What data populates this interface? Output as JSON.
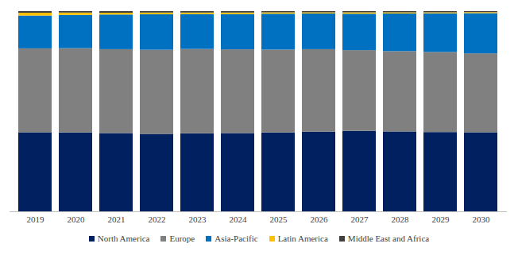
{
  "chart_data": {
    "type": "bar",
    "stacked": true,
    "tick_labels": "x",
    "legend": "bottom",
    "categories": [
      "2019",
      "2020",
      "2021",
      "2022",
      "2023",
      "2024",
      "2025",
      "2026",
      "2027",
      "2028",
      "2029",
      "2030"
    ],
    "ylim": [
      0,
      100
    ],
    "series": [
      {
        "name": "North America",
        "color": "#002060",
        "values": [
          39.5,
          39.4,
          39.1,
          38.7,
          39.0,
          39.1,
          39.4,
          39.8,
          40.2,
          39.9,
          39.6,
          39.5
        ]
      },
      {
        "name": "Europe",
        "color": "#808080",
        "values": [
          41.9,
          42.1,
          41.9,
          42.0,
          42.1,
          41.8,
          41.4,
          41.2,
          40.3,
          40.1,
          40.0,
          39.4
        ]
      },
      {
        "name": "Asia-Pacific",
        "color": "#0070c0",
        "values": [
          16.4,
          16.6,
          17.3,
          17.7,
          17.4,
          17.6,
          17.9,
          17.8,
          18.2,
          18.8,
          19.3,
          20.1
        ]
      },
      {
        "name": "Latin America",
        "color": "#ffc000",
        "values": [
          1.4,
          1.2,
          0.9,
          0.9,
          0.8,
          0.8,
          0.7,
          0.6,
          0.7,
          0.6,
          0.5,
          0.5
        ]
      },
      {
        "name": "Middle East and Africa",
        "color": "#404040",
        "values": [
          0.8,
          0.7,
          0.8,
          0.7,
          0.7,
          0.7,
          0.6,
          0.6,
          0.6,
          0.6,
          0.6,
          0.5
        ]
      }
    ]
  }
}
